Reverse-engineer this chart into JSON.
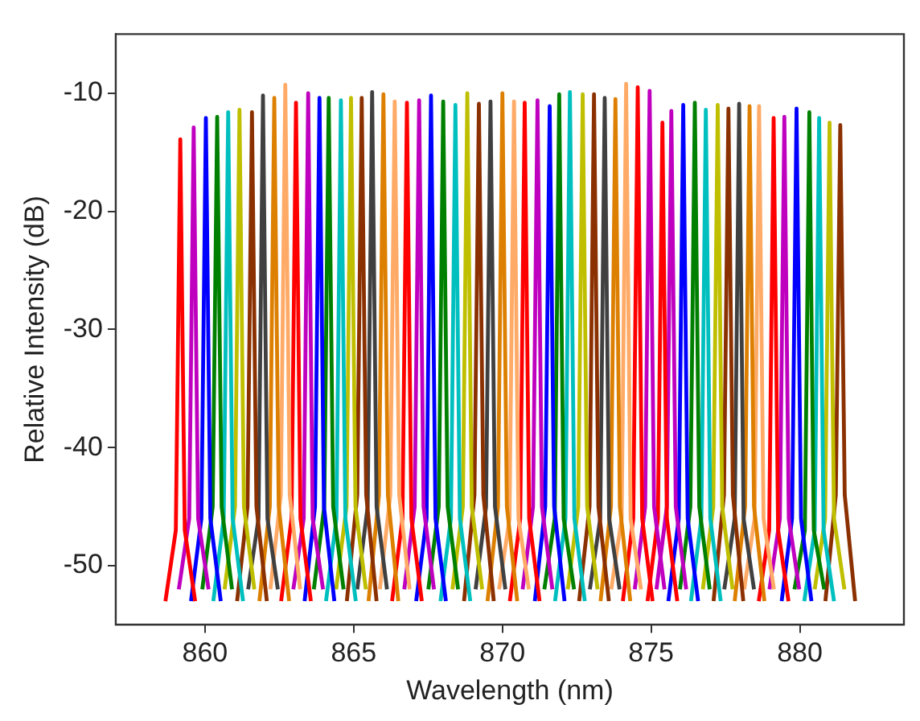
{
  "chart_data": {
    "type": "line",
    "xlabel": "Wavelength (nm)",
    "ylabel": "Relative Intensity (dB)",
    "xlim": [
      857,
      883.5
    ],
    "xticks": [
      860,
      865,
      870,
      875,
      880
    ],
    "ylim": [
      -55,
      -5
    ],
    "yticks": [
      -10,
      -20,
      -30,
      -40,
      -50
    ],
    "grid": false,
    "legend": false,
    "marker": "none",
    "line_style": "solid",
    "series": [
      {
        "color": "#ff0000",
        "x": [
          858.67,
          859.02,
          859.17,
          859.32,
          859.67
        ],
        "values": [
          -53,
          -47,
          -13.9,
          -47,
          -53
        ]
      },
      {
        "color": "#bf00bf",
        "x": [
          859.12,
          859.47,
          859.62,
          859.77,
          860.12
        ],
        "values": [
          -52,
          -46,
          -12.9,
          -46,
          -52
        ]
      },
      {
        "color": "#0000ff",
        "x": [
          859.53,
          859.88,
          860.03,
          860.18,
          860.53
        ],
        "values": [
          -53,
          -46,
          -12.1,
          -46,
          -53
        ]
      },
      {
        "color": "#008000",
        "x": [
          859.91,
          860.26,
          860.41,
          860.56,
          860.91
        ],
        "values": [
          -52,
          -45,
          -12.0,
          -45,
          -52
        ]
      },
      {
        "color": "#00bfbf",
        "x": [
          860.28,
          860.63,
          860.78,
          860.93,
          861.28
        ],
        "values": [
          -53,
          -46,
          -11.6,
          -46,
          -53
        ]
      },
      {
        "color": "#bfbf00",
        "x": [
          860.66,
          861.01,
          861.16,
          861.31,
          861.66
        ],
        "values": [
          -52,
          -45,
          -11.4,
          -45,
          -52
        ]
      },
      {
        "color": "#8b3000",
        "x": [
          861.08,
          861.43,
          861.58,
          861.73,
          862.08
        ],
        "values": [
          -53,
          -45,
          -11.6,
          -45,
          -53
        ]
      },
      {
        "color": "#404040",
        "x": [
          861.45,
          861.8,
          861.95,
          862.1,
          862.45
        ],
        "values": [
          -52,
          -46,
          -10.2,
          -46,
          -52
        ]
      },
      {
        "color": "#dd7f00",
        "x": [
          861.83,
          862.18,
          862.33,
          862.48,
          862.83
        ],
        "values": [
          -53,
          -45,
          -10.4,
          -45,
          -53
        ]
      },
      {
        "color": "#ffaa66",
        "x": [
          862.2,
          862.55,
          862.7,
          862.85,
          863.2
        ],
        "values": [
          -52,
          -44,
          -9.3,
          -44,
          -52
        ]
      },
      {
        "color": "#ff0000",
        "x": [
          862.56,
          862.91,
          863.06,
          863.21,
          863.56
        ],
        "values": [
          -53,
          -46,
          -10.8,
          -46,
          -53
        ]
      },
      {
        "color": "#bf00bf",
        "x": [
          862.97,
          863.32,
          863.47,
          863.62,
          863.97
        ],
        "values": [
          -52,
          -46,
          -10.0,
          -46,
          -52
        ]
      },
      {
        "color": "#0000ff",
        "x": [
          863.35,
          863.7,
          863.85,
          864,
          864.35
        ],
        "values": [
          -53,
          -45,
          -10.4,
          -45,
          -53
        ]
      },
      {
        "color": "#008000",
        "x": [
          863.66,
          864.01,
          864.16,
          864.31,
          864.66
        ],
        "values": [
          -52,
          -45,
          -10.4,
          -45,
          -52
        ]
      },
      {
        "color": "#00bfbf",
        "x": [
          864.07,
          864.42,
          864.57,
          864.72,
          865.07
        ],
        "values": [
          -53,
          -46,
          -10.6,
          -46,
          -53
        ]
      },
      {
        "color": "#bfbf00",
        "x": [
          864.41,
          864.76,
          864.91,
          865.06,
          865.41
        ],
        "values": [
          -52,
          -45,
          -10.4,
          -45,
          -52
        ]
      },
      {
        "color": "#8b3000",
        "x": [
          864.77,
          865.12,
          865.27,
          865.42,
          865.77
        ],
        "values": [
          -53,
          -44,
          -10.4,
          -44,
          -53
        ]
      },
      {
        "color": "#404040",
        "x": [
          865.12,
          865.47,
          865.62,
          865.77,
          866.12
        ],
        "values": [
          -52,
          -45,
          -9.9,
          -45,
          -52
        ]
      },
      {
        "color": "#dd7f00",
        "x": [
          865.5,
          865.85,
          866,
          866.15,
          866.5
        ],
        "values": [
          -53,
          -44,
          -10.1,
          -44,
          -53
        ]
      },
      {
        "color": "#ffaa66",
        "x": [
          865.88,
          866.23,
          866.38,
          866.53,
          866.88
        ],
        "values": [
          -52,
          -44,
          -10.7,
          -44,
          -52
        ]
      },
      {
        "color": "#ff0000",
        "x": [
          866.29,
          866.64,
          866.79,
          866.94,
          867.29
        ],
        "values": [
          -53,
          -46,
          -10.8,
          -46,
          -53
        ]
      },
      {
        "color": "#bf00bf",
        "x": [
          866.7,
          867.05,
          867.2,
          867.35,
          867.7
        ],
        "values": [
          -52,
          -45,
          -10.6,
          -45,
          -52
        ]
      },
      {
        "color": "#0000ff",
        "x": [
          867.1,
          867.45,
          867.6,
          867.75,
          868.1
        ],
        "values": [
          -53,
          -46,
          -10.2,
          -46,
          -53
        ]
      },
      {
        "color": "#008000",
        "x": [
          867.51,
          867.86,
          868.01,
          868.16,
          868.51
        ],
        "values": [
          -52,
          -45,
          -10.7,
          -45,
          -52
        ]
      },
      {
        "color": "#00bfbf",
        "x": [
          867.92,
          868.27,
          868.42,
          868.57,
          868.92
        ],
        "values": [
          -53,
          -46,
          -11.0,
          -46,
          -53
        ]
      },
      {
        "color": "#bfbf00",
        "x": [
          868.32,
          868.67,
          868.82,
          868.97,
          869.32
        ],
        "values": [
          -52,
          -45,
          -10.0,
          -45,
          -52
        ]
      },
      {
        "color": "#8b3000",
        "x": [
          868.71,
          869.06,
          869.21,
          869.36,
          869.71
        ],
        "values": [
          -53,
          -44,
          -10.9,
          -44,
          -53
        ]
      },
      {
        "color": "#404040",
        "x": [
          869.1,
          869.45,
          869.6,
          869.75,
          870.1
        ],
        "values": [
          -52,
          -45,
          -10.7,
          -45,
          -52
        ]
      },
      {
        "color": "#dd7f00",
        "x": [
          869.5,
          869.85,
          870,
          870.15,
          870.5
        ],
        "values": [
          -53,
          -45,
          -10.0,
          -45,
          -53
        ]
      },
      {
        "color": "#ffaa66",
        "x": [
          869.89,
          870.24,
          870.39,
          870.54,
          870.89
        ],
        "values": [
          -52,
          -46,
          -10.7,
          -46,
          -52
        ]
      },
      {
        "color": "#ff0000",
        "x": [
          870.25,
          870.6,
          870.75,
          870.9,
          871.25
        ],
        "values": [
          -53,
          -46,
          -10.8,
          -46,
          -53
        ]
      },
      {
        "color": "#bf00bf",
        "x": [
          870.68,
          871.03,
          871.18,
          871.33,
          871.68
        ],
        "values": [
          -52,
          -45,
          -10.6,
          -45,
          -52
        ]
      },
      {
        "color": "#0000ff",
        "x": [
          871.09,
          871.44,
          871.59,
          871.74,
          872.09
        ],
        "values": [
          -53,
          -45,
          -11.1,
          -45,
          -53
        ]
      },
      {
        "color": "#008000",
        "x": [
          871.41,
          871.76,
          871.91,
          872.06,
          872.41
        ],
        "values": [
          -52,
          -46,
          -10.1,
          -46,
          -52
        ]
      },
      {
        "color": "#00bfbf",
        "x": [
          871.77,
          872.12,
          872.27,
          872.42,
          872.77
        ],
        "values": [
          -53,
          -46,
          -9.9,
          -46,
          -53
        ]
      },
      {
        "color": "#bfbf00",
        "x": [
          872.2,
          872.55,
          872.7,
          872.85,
          873.2
        ],
        "values": [
          -52,
          -45,
          -10.1,
          -45,
          -52
        ]
      },
      {
        "color": "#8b3000",
        "x": [
          872.58,
          872.93,
          873.08,
          873.23,
          873.58
        ],
        "values": [
          -53,
          -45,
          -10.1,
          -45,
          -53
        ]
      },
      {
        "color": "#404040",
        "x": [
          872.94,
          873.29,
          873.44,
          873.59,
          873.94
        ],
        "values": [
          -52,
          -46,
          -10.4,
          -46,
          -52
        ]
      },
      {
        "color": "#dd7f00",
        "x": [
          873.3,
          873.65,
          873.8,
          873.95,
          874.3
        ],
        "values": [
          -53,
          -45,
          -10.5,
          -45,
          -53
        ]
      },
      {
        "color": "#ffaa66",
        "x": [
          873.66,
          874.01,
          874.16,
          874.31,
          874.66
        ],
        "values": [
          -52,
          -46,
          -9.2,
          -46,
          -52
        ]
      },
      {
        "color": "#ff0000",
        "x": [
          874.05,
          874.4,
          874.55,
          874.7,
          875.05
        ],
        "values": [
          -53,
          -46,
          -9.5,
          -46,
          -53
        ]
      },
      {
        "color": "#bf00bf",
        "x": [
          874.45,
          874.8,
          874.95,
          875.1,
          875.45
        ],
        "values": [
          -52,
          -45,
          -9.8,
          -45,
          -52
        ]
      },
      {
        "color": "#ff0000",
        "x": [
          874.88,
          875.23,
          875.38,
          875.53,
          875.88
        ],
        "values": [
          -53,
          -46,
          -12.5,
          -46,
          -53
        ]
      },
      {
        "color": "#bf00bf",
        "x": [
          875.18,
          875.53,
          875.68,
          875.83,
          876.18
        ],
        "values": [
          -52,
          -45,
          -11.5,
          -45,
          -52
        ]
      },
      {
        "color": "#0000ff",
        "x": [
          875.58,
          875.93,
          876.08,
          876.23,
          876.58
        ],
        "values": [
          -53,
          -46,
          -11.0,
          -46,
          -53
        ]
      },
      {
        "color": "#008000",
        "x": [
          875.97,
          876.32,
          876.47,
          876.62,
          876.97
        ],
        "values": [
          -52,
          -45,
          -10.8,
          -45,
          -52
        ]
      },
      {
        "color": "#00bfbf",
        "x": [
          876.34,
          876.69,
          876.84,
          876.99,
          877.34
        ],
        "values": [
          -53,
          -46,
          -11.4,
          -46,
          -53
        ]
      },
      {
        "color": "#bfbf00",
        "x": [
          876.74,
          877.09,
          877.24,
          877.39,
          877.74
        ],
        "values": [
          -52,
          -45,
          -11.0,
          -45,
          -52
        ]
      },
      {
        "color": "#8b3000",
        "x": [
          877.1,
          877.45,
          877.6,
          877.75,
          878.1
        ],
        "values": [
          -53,
          -44,
          -11.3,
          -44,
          -53
        ]
      },
      {
        "color": "#404040",
        "x": [
          877.46,
          877.81,
          877.96,
          878.11,
          878.46
        ],
        "values": [
          -52,
          -46,
          -10.9,
          -46,
          -52
        ]
      },
      {
        "color": "#dd7f00",
        "x": [
          877.81,
          878.16,
          878.31,
          878.46,
          878.81
        ],
        "values": [
          -53,
          -45,
          -11.1,
          -45,
          -53
        ]
      },
      {
        "color": "#ffaa66",
        "x": [
          878.13,
          878.48,
          878.63,
          878.78,
          879.13
        ],
        "values": [
          -52,
          -46,
          -11.1,
          -46,
          -52
        ]
      },
      {
        "color": "#ff0000",
        "x": [
          878.62,
          878.97,
          879.12,
          879.27,
          879.62
        ],
        "values": [
          -53,
          -47,
          -12.1,
          -47,
          -53
        ]
      },
      {
        "color": "#bf00bf",
        "x": [
          878.98,
          879.33,
          879.48,
          879.63,
          879.98
        ],
        "values": [
          -52,
          -46,
          -12.0,
          -46,
          -52
        ]
      },
      {
        "color": "#0000ff",
        "x": [
          879.39,
          879.74,
          879.89,
          880.04,
          880.39
        ],
        "values": [
          -53,
          -46,
          -11.3,
          -46,
          -53
        ]
      },
      {
        "color": "#008000",
        "x": [
          879.82,
          880.17,
          880.32,
          880.47,
          880.82
        ],
        "values": [
          -52,
          -47,
          -11.6,
          -47,
          -52
        ]
      },
      {
        "color": "#00bfbf",
        "x": [
          880.15,
          880.5,
          880.65,
          880.8,
          881.15
        ],
        "values": [
          -53,
          -47,
          -12.1,
          -47,
          -53
        ]
      },
      {
        "color": "#bfbf00",
        "x": [
          880.5,
          880.85,
          881,
          881.15,
          881.5
        ],
        "values": [
          -52,
          -46,
          -12.5,
          -46,
          -52
        ]
      },
      {
        "color": "#8b3000",
        "x": [
          880.86,
          881.21,
          881.36,
          881.51,
          881.86
        ],
        "values": [
          -53,
          -44,
          -12.7,
          -44,
          -53
        ]
      }
    ]
  }
}
